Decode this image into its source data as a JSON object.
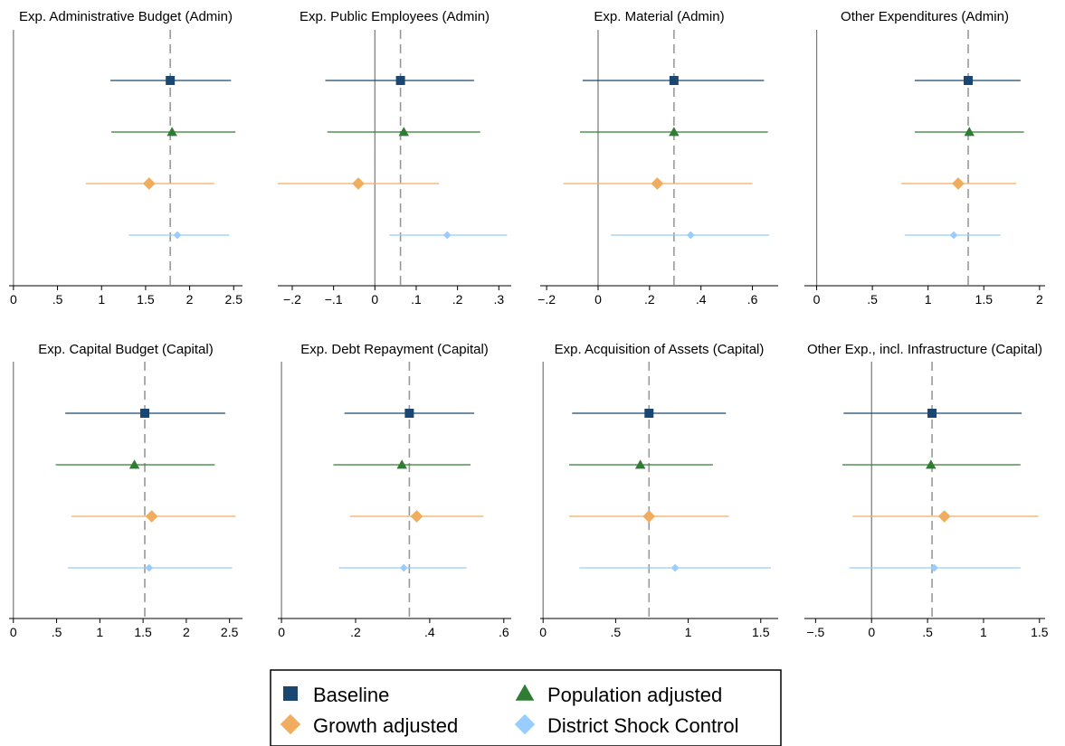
{
  "chart_data": [
    {
      "type": "scatter",
      "title": "Exp. Administrative Budget (Admin)",
      "xticks": [
        0,
        0.5,
        1,
        1.5,
        2,
        2.5
      ],
      "xtick_labels": [
        "0",
        ".5",
        "1",
        "1.5",
        "2",
        "2.5"
      ],
      "xlim": [
        -0.05,
        2.6
      ],
      "reference_line": 1.78,
      "series": [
        {
          "name": "Baseline",
          "estimate": 1.78,
          "ci": [
            1.1,
            2.47
          ]
        },
        {
          "name": "Population adjusted",
          "estimate": 1.8,
          "ci": [
            1.11,
            2.52
          ]
        },
        {
          "name": "Growth adjusted",
          "estimate": 1.54,
          "ci": [
            0.82,
            2.28
          ]
        },
        {
          "name": "District Shock Control",
          "estimate": 1.86,
          "ci": [
            1.31,
            2.45
          ]
        }
      ]
    },
    {
      "type": "scatter",
      "title": "Exp. Public Employees (Admin)",
      "xticks": [
        -0.2,
        -0.1,
        0,
        0.1,
        0.2,
        0.3
      ],
      "xtick_labels": [
        "−.2",
        "−.1",
        "0",
        ".1",
        ".2",
        ".3"
      ],
      "xlim": [
        -0.235,
        0.33
      ],
      "reference_line": 0.062,
      "series": [
        {
          "name": "Baseline",
          "estimate": 0.062,
          "ci": [
            -0.12,
            0.24
          ]
        },
        {
          "name": "Population adjusted",
          "estimate": 0.07,
          "ci": [
            -0.115,
            0.255
          ]
        },
        {
          "name": "Growth adjusted",
          "estimate": -0.04,
          "ci": [
            -0.235,
            0.155
          ]
        },
        {
          "name": "District Shock Control",
          "estimate": 0.175,
          "ci": [
            0.035,
            0.32
          ]
        }
      ]
    },
    {
      "type": "scatter",
      "title": "Exp.  Material (Admin)",
      "xticks": [
        -0.2,
        0,
        0.2,
        0.4,
        0.6
      ],
      "xtick_labels": [
        "−.2",
        "0",
        ".2",
        ".4",
        ".6"
      ],
      "xlim": [
        -0.225,
        0.7
      ],
      "reference_line": 0.295,
      "series": [
        {
          "name": "Baseline",
          "estimate": 0.295,
          "ci": [
            -0.06,
            0.645
          ]
        },
        {
          "name": "Population adjusted",
          "estimate": 0.295,
          "ci": [
            -0.07,
            0.66
          ]
        },
        {
          "name": "Growth adjusted",
          "estimate": 0.23,
          "ci": [
            -0.135,
            0.6
          ]
        },
        {
          "name": "District Shock Control",
          "estimate": 0.36,
          "ci": [
            0.05,
            0.665
          ]
        }
      ]
    },
    {
      "type": "scatter",
      "title": "Other Expenditures (Admin)",
      "xticks": [
        0,
        0.5,
        1,
        1.5,
        2
      ],
      "xtick_labels": [
        "0",
        ".5",
        "1",
        "1.5",
        "2"
      ],
      "xlim": [
        -0.11,
        2.05
      ],
      "reference_line": 1.36,
      "series": [
        {
          "name": "Baseline",
          "estimate": 1.36,
          "ci": [
            0.88,
            1.83
          ]
        },
        {
          "name": "Population adjusted",
          "estimate": 1.37,
          "ci": [
            0.88,
            1.86
          ]
        },
        {
          "name": "Growth adjusted",
          "estimate": 1.27,
          "ci": [
            0.76,
            1.79
          ]
        },
        {
          "name": "District Shock Control",
          "estimate": 1.23,
          "ci": [
            0.79,
            1.65
          ]
        }
      ]
    },
    {
      "type": "scatter",
      "title": "Exp. Capital Budget (Capital)",
      "xticks": [
        0,
        0.5,
        1,
        1.5,
        2,
        2.5
      ],
      "xtick_labels": [
        "0",
        ".5",
        "1",
        "1.5",
        "2",
        "2.5"
      ],
      "xlim": [
        -0.05,
        2.65
      ],
      "reference_line": 1.52,
      "series": [
        {
          "name": "Baseline",
          "estimate": 1.52,
          "ci": [
            0.6,
            2.45
          ]
        },
        {
          "name": "Population adjusted",
          "estimate": 1.4,
          "ci": [
            0.49,
            2.33
          ]
        },
        {
          "name": "Growth adjusted",
          "estimate": 1.6,
          "ci": [
            0.67,
            2.57
          ]
        },
        {
          "name": "District Shock Control",
          "estimate": 1.57,
          "ci": [
            0.63,
            2.53
          ]
        }
      ]
    },
    {
      "type": "scatter",
      "title": "Exp. Debt Repayment (Capital)",
      "xticks": [
        0,
        0.2,
        0.4,
        0.6
      ],
      "xtick_labels": [
        "0",
        ".2",
        ".4",
        ".6"
      ],
      "xlim": [
        -0.01,
        0.62
      ],
      "reference_line": 0.345,
      "series": [
        {
          "name": "Baseline",
          "estimate": 0.345,
          "ci": [
            0.17,
            0.52
          ]
        },
        {
          "name": "Population adjusted",
          "estimate": 0.325,
          "ci": [
            0.14,
            0.51
          ]
        },
        {
          "name": "Growth adjusted",
          "estimate": 0.365,
          "ci": [
            0.185,
            0.545
          ]
        },
        {
          "name": "District Shock Control",
          "estimate": 0.33,
          "ci": [
            0.155,
            0.5
          ]
        }
      ]
    },
    {
      "type": "scatter",
      "title": "Exp. Acquisition of Assets (Capital)",
      "xticks": [
        0,
        0.5,
        1,
        1.5
      ],
      "xtick_labels": [
        "0",
        ".5",
        "1",
        "1.5"
      ],
      "xlim": [
        -0.02,
        1.62
      ],
      "reference_line": 0.73,
      "series": [
        {
          "name": "Baseline",
          "estimate": 0.73,
          "ci": [
            0.2,
            1.26
          ]
        },
        {
          "name": "Population adjusted",
          "estimate": 0.67,
          "ci": [
            0.18,
            1.17
          ]
        },
        {
          "name": "Growth adjusted",
          "estimate": 0.73,
          "ci": [
            0.18,
            1.28
          ]
        },
        {
          "name": "District Shock Control",
          "estimate": 0.91,
          "ci": [
            0.25,
            1.57
          ]
        }
      ]
    },
    {
      "type": "scatter",
      "title": "Other Exp., incl. Infrastructure (Capital)",
      "xticks": [
        -0.5,
        0,
        0.5,
        1,
        1.5
      ],
      "xtick_labels": [
        "−.5",
        "0",
        ".5",
        "1",
        "1.5"
      ],
      "xlim": [
        -0.6,
        1.55
      ],
      "reference_line": 0.54,
      "series": [
        {
          "name": "Baseline",
          "estimate": 0.54,
          "ci": [
            -0.25,
            1.34
          ]
        },
        {
          "name": "Population adjusted",
          "estimate": 0.53,
          "ci": [
            -0.26,
            1.33
          ]
        },
        {
          "name": "Growth adjusted",
          "estimate": 0.65,
          "ci": [
            -0.17,
            1.49
          ]
        },
        {
          "name": "District Shock Control",
          "estimate": 0.56,
          "ci": [
            -0.2,
            1.33
          ]
        }
      ]
    }
  ],
  "legend": {
    "placement": "bottom-center",
    "items": [
      {
        "name": "Baseline",
        "marker": "square",
        "color": "#1a476f"
      },
      {
        "name": "Population adjusted",
        "marker": "triangle",
        "color": "#2e7d32"
      },
      {
        "name": "Growth adjusted",
        "marker": "diamond",
        "color": "#f0ad60"
      },
      {
        "name": "District Shock Control",
        "marker": "diamond",
        "color": "#99ccff"
      }
    ]
  },
  "colors": {
    "axis": "#000000",
    "zero_line": "#777777",
    "reference_line": "#999999"
  }
}
